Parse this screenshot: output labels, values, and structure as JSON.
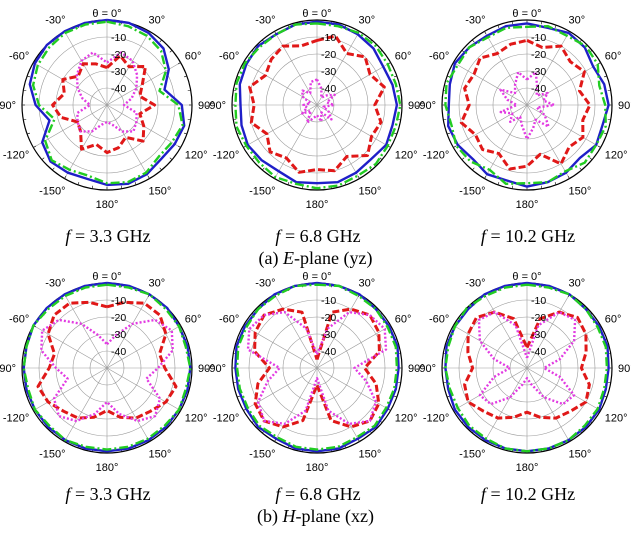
{
  "figure": {
    "captions": [
      {
        "prefix": "(a) ",
        "plane": "E",
        "suffix": "-plane (yz)"
      },
      {
        "prefix": "(b) ",
        "plane": "H",
        "suffix": "-plane (xz)"
      }
    ],
    "freq_symbol": "f",
    "freq_labels": [
      "= 3.3 GHz",
      "= 6.8 GHz",
      "= 10.2 GHz",
      "= 3.3 GHz",
      "= 6.8 GHz",
      "= 10.2 GHz"
    ]
  },
  "polar_axes": {
    "top_label": "θ = 0°",
    "angle_labels": [
      {
        "deg": 30,
        "text": "30°"
      },
      {
        "deg": 60,
        "text": "60°"
      },
      {
        "deg": 90,
        "text": "90°"
      },
      {
        "deg": 120,
        "text": "120°"
      },
      {
        "deg": 150,
        "text": "150°"
      },
      {
        "deg": 180,
        "text": "180°"
      },
      {
        "deg": 210,
        "text": "-150°"
      },
      {
        "deg": 240,
        "text": "-120°"
      },
      {
        "deg": 270,
        "text": "-90°"
      },
      {
        "deg": 300,
        "text": "-60°"
      },
      {
        "deg": 330,
        "text": "-30°"
      }
    ],
    "radial_labels": [
      "-10",
      "-20",
      "-30",
      "-40"
    ],
    "colors": {
      "co_pol_blue": "#1f1fc8",
      "co_pol_green": "#22cc22",
      "cross_pol_red": "#e01818",
      "cross_pol_magenta": "#e23be2"
    }
  },
  "chart_data": [
    {
      "type": "polar-line",
      "rlim": [
        -50,
        0
      ],
      "radial_ticks": [
        -10,
        -20,
        -30,
        -40
      ],
      "angle_step_deg": 30,
      "series": [
        {
          "key": "blue",
          "style": "solid",
          "values": [
            0,
            0,
            -1,
            -3,
            -8,
            -15,
            -6,
            -3,
            -4,
            -5,
            -3,
            -2,
            -3,
            -5,
            -4,
            -3,
            -6,
            -15,
            -8,
            -3,
            -1,
            0,
            0,
            0
          ]
        },
        {
          "key": "green",
          "style": "dashdot",
          "values": [
            -1,
            -2,
            -3,
            -5,
            -10,
            -18,
            -8,
            -4,
            -6,
            -7,
            -4,
            -3,
            -4,
            -7,
            -6,
            -4,
            -8,
            -18,
            -10,
            -5,
            -3,
            -2,
            -1,
            -1
          ]
        },
        {
          "key": "red",
          "style": "dash",
          "values": [
            -28,
            -20,
            -24,
            -18,
            -26,
            -30,
            -22,
            -30,
            -25,
            -20,
            -28,
            -24,
            -22,
            -26,
            -20,
            -28,
            -30,
            -22,
            -18,
            -24,
            -20,
            -26,
            -22,
            -25
          ]
        },
        {
          "key": "magenta",
          "style": "dot",
          "values": [
            -25,
            -18,
            -20,
            -25,
            -30,
            -35,
            -40,
            -32,
            -30,
            -28,
            -32,
            -38,
            -40,
            -38,
            -32,
            -28,
            -30,
            -32,
            -40,
            -35,
            -30,
            -25,
            -20,
            -18
          ]
        }
      ]
    },
    {
      "type": "polar-line",
      "rlim": [
        -50,
        0
      ],
      "radial_ticks": [
        -10,
        -20,
        -30,
        -40
      ],
      "angle_step_deg": 30,
      "series": [
        {
          "key": "blue",
          "style": "solid",
          "values": [
            -1,
            -1,
            -2,
            -3,
            -5,
            -4,
            -3,
            -4,
            -3,
            -5,
            -4,
            -3,
            -4,
            -3,
            -5,
            -4,
            -3,
            -4,
            -5,
            -3,
            -2,
            -1,
            -2,
            -1
          ]
        },
        {
          "key": "green",
          "style": "dashdot",
          "values": [
            -2,
            -2,
            -1,
            -1,
            -2,
            -2,
            -1,
            -2,
            -2,
            -1,
            -2,
            -1,
            -1,
            -2,
            -1,
            -2,
            -2,
            -1,
            -2,
            -1,
            -1,
            -2,
            -2,
            -1
          ]
        },
        {
          "key": "red",
          "style": "dash",
          "values": [
            -12,
            -8,
            -15,
            -10,
            -14,
            -9,
            -16,
            -11,
            -13,
            -8,
            -15,
            -10,
            -12,
            -9,
            -14,
            -11,
            -16,
            -10,
            -13,
            -9,
            -15,
            -12,
            -10,
            -14
          ]
        },
        {
          "key": "magenta",
          "style": "dot",
          "values": [
            -35,
            -40,
            -45,
            -42,
            -38,
            -44,
            -40,
            -46,
            -42,
            -38,
            -45,
            -40,
            -44,
            -42,
            -38,
            -45,
            -40,
            -44,
            -42,
            -46,
            -40,
            -38,
            -42,
            -36
          ]
        }
      ]
    },
    {
      "type": "polar-line",
      "rlim": [
        -50,
        0
      ],
      "radial_ticks": [
        -10,
        -20,
        -30,
        -40
      ],
      "angle_step_deg": 30,
      "series": [
        {
          "key": "blue",
          "style": "solid",
          "values": [
            -2,
            -3,
            -1,
            -2,
            -5,
            -3,
            -2,
            -4,
            -3,
            -6,
            -4,
            -3,
            -2,
            -4,
            -3,
            -5,
            -3,
            -2,
            -4,
            -3,
            -1,
            -2,
            -3,
            -2
          ]
        },
        {
          "key": "green",
          "style": "dashdot",
          "values": [
            -4,
            -2,
            -3,
            -1,
            -2,
            -6,
            -4,
            -2,
            -3,
            -2,
            -5,
            -3,
            -4,
            -2,
            -6,
            -3,
            -2,
            -4,
            -2,
            -1,
            -3,
            -2,
            -4,
            -3
          ]
        },
        {
          "key": "red",
          "style": "dash",
          "values": [
            -12,
            -15,
            -10,
            -14,
            -11,
            -18,
            -13,
            -16,
            -12,
            -15,
            -10,
            -20,
            -14,
            -11,
            -17,
            -13,
            -15,
            -10,
            -16,
            -12,
            -14,
            -11,
            -15,
            -13
          ]
        },
        {
          "key": "magenta",
          "style": "dot",
          "values": [
            -35,
            -30,
            -38,
            -42,
            -36,
            -40,
            -34,
            -44,
            -38,
            -32,
            -40,
            -36,
            -30,
            -38,
            -42,
            -36,
            -40,
            -34,
            -44,
            -38,
            -32,
            -40,
            -36,
            -30
          ]
        }
      ]
    },
    {
      "type": "polar-line",
      "rlim": [
        -50,
        0
      ],
      "radial_ticks": [
        -10,
        -20,
        -30,
        -40
      ],
      "angle_step_deg": 30,
      "series": [
        {
          "key": "blue",
          "style": "solid",
          "values": [
            0,
            0,
            0,
            0,
            -1,
            -1,
            -1,
            -1,
            -1,
            -1,
            -1,
            -1,
            -1,
            -1,
            -1,
            -1,
            -1,
            -1,
            -1,
            -1,
            0,
            0,
            0,
            0
          ]
        },
        {
          "key": "green",
          "style": "dashdot",
          "values": [
            -1,
            -1,
            0,
            -1,
            -1,
            -2,
            -1,
            -2,
            -1,
            -2,
            -2,
            -2,
            -2,
            -2,
            -1,
            -2,
            -1,
            -2,
            -1,
            -1,
            0,
            -1,
            -1,
            -1
          ]
        },
        {
          "key": "red",
          "style": "dash",
          "values": [
            -14,
            -10,
            -6,
            -6,
            -10,
            -18,
            -16,
            -8,
            -10,
            -14,
            -16,
            -20,
            -25,
            -20,
            -16,
            -14,
            -10,
            -8,
            -16,
            -18,
            -10,
            -6,
            -6,
            -10
          ]
        },
        {
          "key": "magenta",
          "style": "dot",
          "values": [
            -36,
            -30,
            -20,
            -10,
            -6,
            -10,
            -20,
            -26,
            -14,
            -10,
            -14,
            -22,
            -30,
            -22,
            -14,
            -10,
            -14,
            -26,
            -20,
            -10,
            -6,
            -10,
            -20,
            -30
          ]
        }
      ]
    },
    {
      "type": "polar-line",
      "rlim": [
        -50,
        0
      ],
      "radial_ticks": [
        -10,
        -20,
        -30,
        -40
      ],
      "angle_step_deg": 30,
      "series": [
        {
          "key": "blue",
          "style": "solid",
          "values": [
            0,
            0,
            0,
            -1,
            -1,
            -1,
            -2,
            -2,
            -2,
            -1,
            -2,
            -1,
            -1,
            -1,
            -2,
            -1,
            -2,
            -2,
            -2,
            -1,
            -1,
            -1,
            0,
            0
          ]
        },
        {
          "key": "green",
          "style": "dashdot",
          "values": [
            -1,
            0,
            -1,
            -1,
            -2,
            -2,
            -3,
            -3,
            -3,
            -2,
            -3,
            -2,
            -2,
            -2,
            -3,
            -2,
            -3,
            -3,
            -3,
            -2,
            -2,
            -1,
            -1,
            0
          ]
        },
        {
          "key": "red",
          "style": "dash",
          "values": [
            -45,
            -16,
            -10,
            -6,
            -8,
            -12,
            -22,
            -14,
            -8,
            -6,
            -10,
            -18,
            -40,
            -18,
            -10,
            -6,
            -8,
            -14,
            -22,
            -12,
            -8,
            -6,
            -10,
            -16
          ]
        },
        {
          "key": "magenta",
          "style": "dot",
          "values": [
            -42,
            -26,
            -12,
            -6,
            -4,
            -8,
            -28,
            -20,
            -10,
            -6,
            -12,
            -24,
            -44,
            -24,
            -12,
            -6,
            -10,
            -20,
            -28,
            -8,
            -4,
            -6,
            -12,
            -26
          ]
        }
      ]
    },
    {
      "type": "polar-line",
      "rlim": [
        -50,
        0
      ],
      "radial_ticks": [
        -10,
        -20,
        -30,
        -40
      ],
      "angle_step_deg": 30,
      "series": [
        {
          "key": "blue",
          "style": "solid",
          "values": [
            0,
            0,
            0,
            -1,
            -1,
            -1,
            -2,
            -2,
            -1,
            -1,
            -1,
            -1,
            -1,
            -1,
            -1,
            -1,
            -1,
            -2,
            -2,
            -1,
            -1,
            -1,
            0,
            0
          ]
        },
        {
          "key": "green",
          "style": "dashdot",
          "values": [
            -1,
            -1,
            0,
            -1,
            -2,
            -2,
            -3,
            -3,
            -2,
            -2,
            -1,
            -1,
            -1,
            -1,
            -2,
            -2,
            -3,
            -3,
            -2,
            -2,
            -1,
            0,
            -1,
            -1
          ]
        },
        {
          "key": "red",
          "style": "dash",
          "values": [
            -38,
            -20,
            -12,
            -8,
            -10,
            -14,
            -18,
            -12,
            -10,
            -14,
            -16,
            -20,
            -24,
            -20,
            -16,
            -14,
            -10,
            -12,
            -18,
            -14,
            -10,
            -8,
            -12,
            -20
          ]
        },
        {
          "key": "magenta",
          "style": "dot",
          "values": [
            -44,
            -24,
            -12,
            -10,
            -18,
            -30,
            -40,
            -30,
            -18,
            -20,
            -30,
            -40,
            -44,
            -40,
            -30,
            -20,
            -18,
            -30,
            -40,
            -30,
            -18,
            -10,
            -12,
            -24
          ]
        }
      ]
    }
  ]
}
